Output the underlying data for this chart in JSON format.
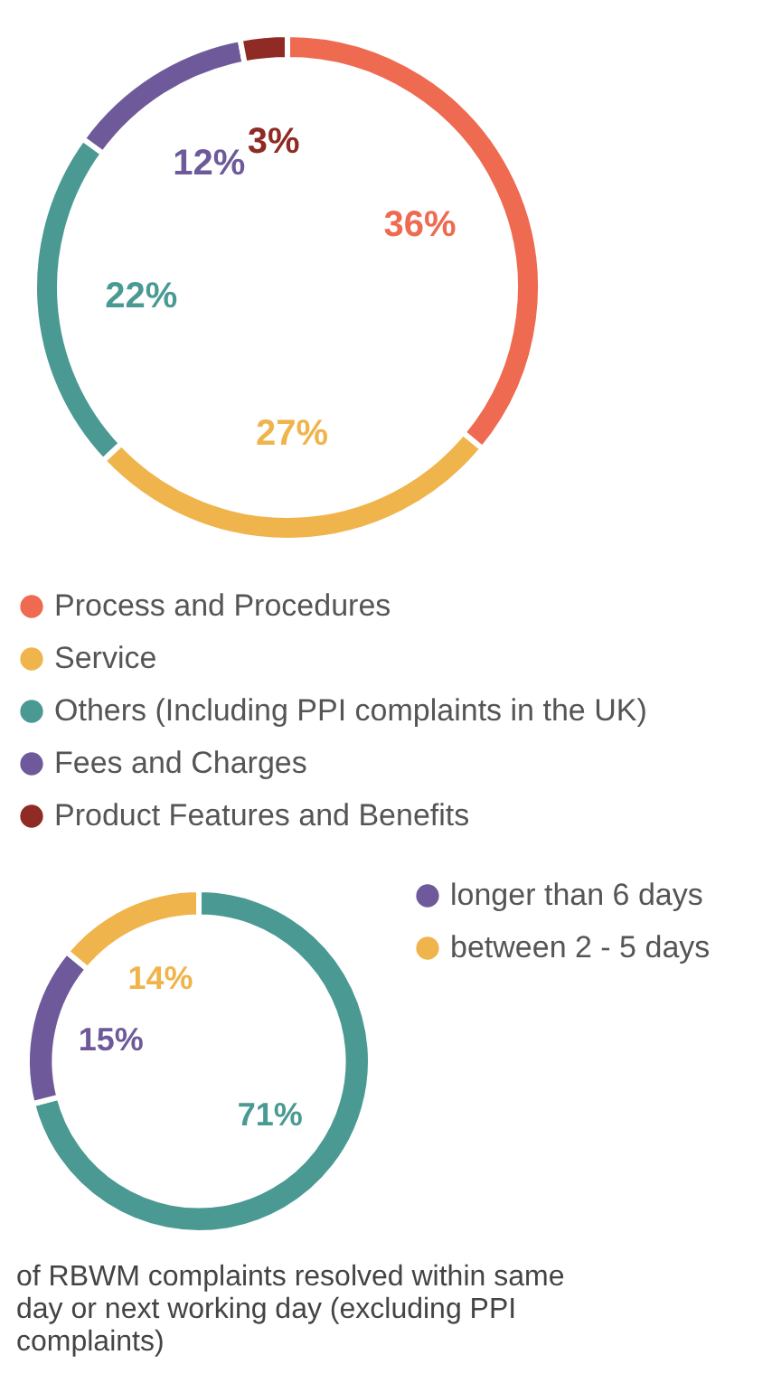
{
  "chart_data": [
    {
      "type": "donut",
      "categories": [
        "Process and Procedures",
        "Service",
        "Others (Including PPI complaints in the UK)",
        "Fees and Charges",
        "Product Features and Benefits"
      ],
      "values": [
        36,
        27,
        22,
        12,
        3
      ],
      "value_labels": [
        "36%",
        "27%",
        "22%",
        "12%",
        "3%"
      ],
      "colors": [
        "#ee6a50",
        "#f0b44c",
        "#4a9a93",
        "#6e5a9a",
        "#8f2a24"
      ],
      "legend": "bottom"
    },
    {
      "type": "donut",
      "categories": [
        null,
        "longer than 6 days",
        "between 2 - 5 days"
      ],
      "values": [
        71,
        15,
        14
      ],
      "value_labels": [
        "71%",
        "15%",
        "14%"
      ],
      "colors": [
        "#4a9a93",
        "#6e5a9a",
        "#f0b44c"
      ],
      "legend": "right",
      "annotations": [
        "of RBWM complaints resolved within same day or next working day (excluding PPI complaints)"
      ]
    }
  ]
}
